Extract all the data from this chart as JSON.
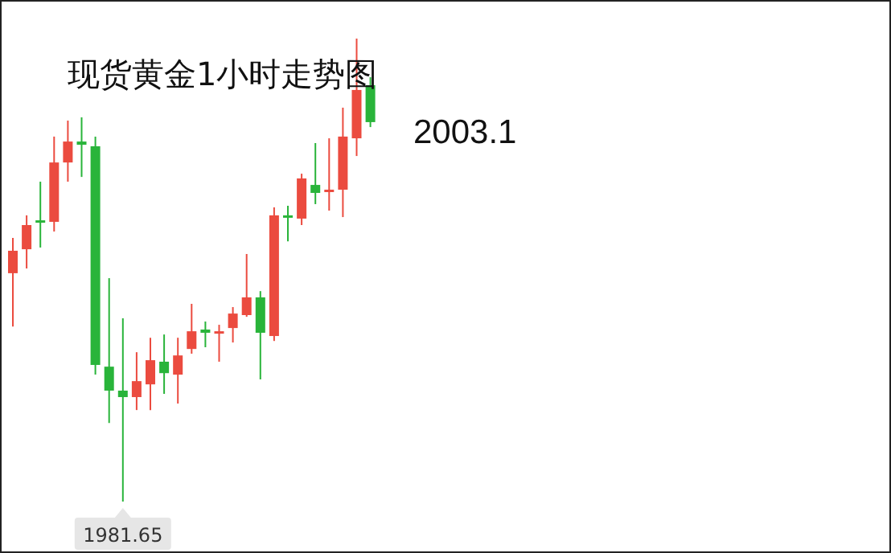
{
  "chart_data": {
    "type": "candlestick",
    "title": "现货黄金1小时走势图",
    "categories": [
      null,
      null,
      null,
      null,
      null,
      null,
      null,
      null,
      null,
      null,
      null,
      null,
      null,
      null,
      null,
      null,
      null,
      null,
      null,
      null,
      null,
      null,
      null,
      null,
      null,
      null,
      null
    ],
    "ohlc": [
      [
        1992.23,
        1993.86,
        1989.76,
        1993.27
      ],
      [
        1993.34,
        1994.91,
        1992.45,
        1994.46
      ],
      [
        1994.68,
        1996.47,
        1993.42,
        1994.61
      ],
      [
        1994.61,
        1998.56,
        1994.16,
        1997.36
      ],
      [
        1997.36,
        1999.3,
        1996.47,
        1998.33
      ],
      [
        1998.33,
        1999.45,
        1996.69,
        1998.18
      ],
      [
        1998.11,
        1998.56,
        1987.53,
        1987.98
      ],
      [
        1987.9,
        1992.0,
        1985.29,
        1986.79
      ],
      [
        1986.79,
        1990.14,
        1981.65,
        1986.49
      ],
      [
        1986.49,
        1988.57,
        1985.89,
        1987.23
      ],
      [
        1987.08,
        1989.24,
        1985.89,
        1988.2
      ],
      [
        1988.13,
        1989.39,
        1986.64,
        1987.6
      ],
      [
        1987.53,
        1989.24,
        1986.19,
        1988.42
      ],
      [
        1988.72,
        1990.81,
        1988.5,
        1989.54
      ],
      [
        1989.62,
        1989.99,
        1988.8,
        1989.47
      ],
      [
        1989.47,
        1989.84,
        1988.13,
        1989.54
      ],
      [
        1989.69,
        1990.66,
        1989.02,
        1990.36
      ],
      [
        1990.29,
        1993.12,
        1990.21,
        1991.11
      ],
      [
        1991.11,
        1991.4,
        1987.31,
        1989.47
      ],
      [
        1989.32,
        1995.28,
        1989.09,
        1994.91
      ],
      [
        1994.91,
        1995.35,
        1993.71,
        1994.83
      ],
      [
        1994.76,
        1996.84,
        1994.46,
        1996.62
      ],
      [
        1996.32,
        1998.26,
        1995.43,
        1995.95
      ],
      [
        1996.02,
        1998.48,
        1995.13,
        1996.1
      ],
      [
        1996.1,
        1999.9,
        1994.83,
        1998.56
      ],
      [
        1998.48,
        2003.1,
        1997.66,
        2000.72
      ],
      [
        2000.94,
        2001.31,
        1999.0,
        1999.23
      ]
    ],
    "colors": [
      "#eb4b3f",
      "#eb4b3f",
      "#29b43a",
      "#eb4b3f",
      "#eb4b3f",
      "#29b43a",
      "#29b43a",
      "#29b43a",
      "#29b43a",
      "#eb4b3f",
      "#eb4b3f",
      "#29b43a",
      "#eb4b3f",
      "#eb4b3f",
      "#29b43a",
      "#eb4b3f",
      "#eb4b3f",
      "#eb4b3f",
      "#29b43a",
      "#eb4b3f",
      "#29b43a",
      "#eb4b3f",
      "#29b43a",
      "#eb4b3f",
      "#eb4b3f",
      "#eb4b3f",
      "#29b43a"
    ],
    "annotations": [
      "2003.1",
      "1981.65"
    ]
  }
}
